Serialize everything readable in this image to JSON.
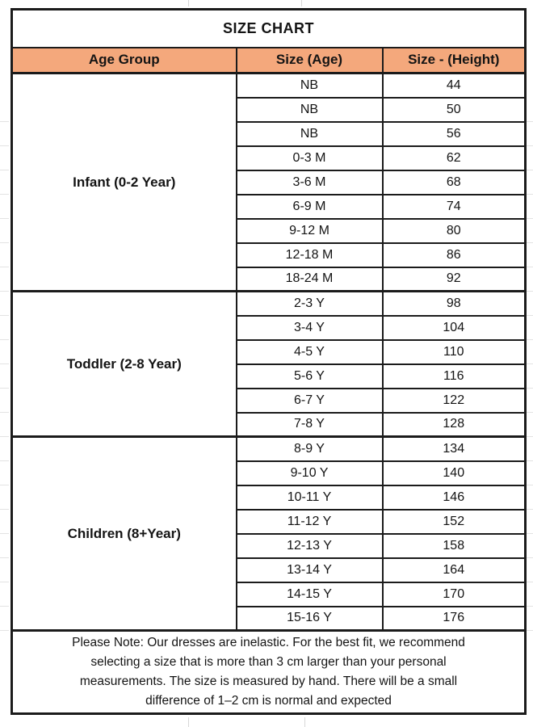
{
  "title": "SIZE CHART",
  "table": {
    "columns": [
      "Age Group",
      "Size (Age)",
      "Size - (Height)"
    ],
    "groups": [
      {
        "label": "Infant (0-2 Year)",
        "rows": [
          [
            "NB",
            "44"
          ],
          [
            "NB",
            "50"
          ],
          [
            "NB",
            "56"
          ],
          [
            "0-3 M",
            "62"
          ],
          [
            "3-6 M",
            "68"
          ],
          [
            "6-9 M",
            "74"
          ],
          [
            "9-12 M",
            "80"
          ],
          [
            "12-18 M",
            "86"
          ],
          [
            "18-24 M",
            "92"
          ]
        ]
      },
      {
        "label": "Toddler (2-8 Year)",
        "rows": [
          [
            "2-3 Y",
            "98"
          ],
          [
            "3-4 Y",
            "104"
          ],
          [
            "4-5 Y",
            "110"
          ],
          [
            "5-6 Y",
            "116"
          ],
          [
            "6-7 Y",
            "122"
          ],
          [
            "7-8 Y",
            "128"
          ]
        ]
      },
      {
        "label": "Children (8+Year)",
        "rows": [
          [
            "8-9 Y",
            "134"
          ],
          [
            "9-10 Y",
            "140"
          ],
          [
            "10-11 Y",
            "146"
          ],
          [
            "11-12 Y",
            "152"
          ],
          [
            "12-13 Y",
            "158"
          ],
          [
            "13-14 Y",
            "164"
          ],
          [
            "14-15 Y",
            "170"
          ],
          [
            "15-16 Y",
            "176"
          ]
        ]
      }
    ]
  },
  "note": {
    "lines": [
      "Please Note: Our dresses are inelastic. For the best fit, we recommend",
      "selecting a size that is more than 3 cm larger than your personal",
      "measurements. The size is measured by hand. There will be a small",
      "difference of 1–2 cm is normal and expected"
    ]
  },
  "colors": {
    "header_bg": "#F4A87C",
    "border_color": "#1B1B1B"
  }
}
